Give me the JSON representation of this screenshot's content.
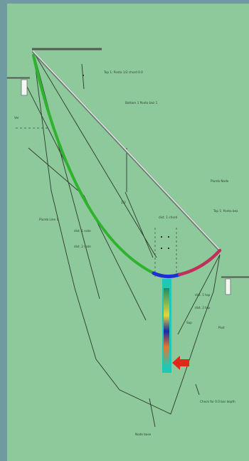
{
  "colors": {
    "frame": "#6e9aa0",
    "background": "#8dc99a",
    "construction_lines": "#2c3a2c",
    "chord": "#bcc6c2",
    "arc_left": "#2fb32f",
    "arc_bottom": "#1d2fd0",
    "arc_right": "#c0305a",
    "column": "#20c7b4",
    "arrow": "#e02a18"
  },
  "labels": [
    {
      "id": "top-right-note",
      "text": "Top 1: Ponto 1/2 chord 0.0"
    },
    {
      "id": "upper-note",
      "text": "Bottom 1 Ponto bez 1"
    },
    {
      "id": "left-short",
      "text": "Ver"
    },
    {
      "id": "left-note",
      "text": "Plumb Line 1"
    },
    {
      "id": "mid-note-1",
      "text": "dist. 1 note"
    },
    {
      "id": "mid-note-2",
      "text": "dist. 2 note"
    },
    {
      "id": "center-vert",
      "text": "1/2"
    },
    {
      "id": "center-note",
      "text": "dist. 1 chord"
    },
    {
      "id": "right-note-1",
      "text": "Plumb Node"
    },
    {
      "id": "right-note-2",
      "text": "Top 1: Ponto bez"
    },
    {
      "id": "low-center-1",
      "text": "dist. 1 top"
    },
    {
      "id": "low-center-2",
      "text": "dist. 2 top"
    },
    {
      "id": "right-short",
      "text": "Post"
    },
    {
      "id": "small-mid",
      "text": "Sup"
    },
    {
      "id": "bottom-right-note",
      "text": "Check for 0.0 bar depth"
    },
    {
      "id": "bottom-note",
      "text": "Node base"
    }
  ]
}
